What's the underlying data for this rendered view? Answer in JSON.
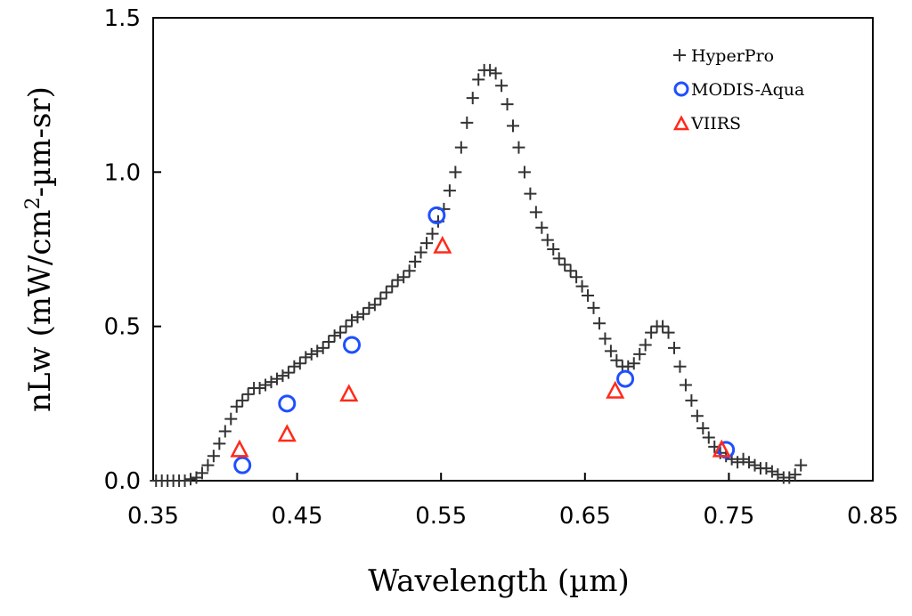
{
  "chart_data": {
    "type": "scatter",
    "title": "",
    "xlabel": "Wavelength (µm)",
    "ylabel_main": "nLw (mW/cm",
    "ylabel_sup": "2",
    "ylabel_tail": "-µm-sr)",
    "xlim": [
      0.35,
      0.85
    ],
    "ylim": [
      0.0,
      1.5
    ],
    "x_ticks": [
      0.35,
      0.45,
      0.55,
      0.65,
      0.75,
      0.85
    ],
    "x_tick_labels": [
      "0.35",
      "0.45",
      "0.55",
      "0.65",
      "0.75",
      "0.85"
    ],
    "y_ticks": [
      0.0,
      0.5,
      1.0,
      1.5
    ],
    "y_tick_labels": [
      "0.0",
      "0.5",
      "1.0",
      "1.5"
    ],
    "grid": false,
    "legend_position": "top-right",
    "series": [
      {
        "name": "HyperPro",
        "marker": "plus",
        "color": "#333333",
        "x": [
          0.352,
          0.356,
          0.36,
          0.364,
          0.368,
          0.372,
          0.376,
          0.38,
          0.384,
          0.388,
          0.392,
          0.396,
          0.4,
          0.404,
          0.408,
          0.412,
          0.416,
          0.42,
          0.424,
          0.428,
          0.432,
          0.436,
          0.44,
          0.444,
          0.448,
          0.452,
          0.456,
          0.46,
          0.464,
          0.468,
          0.472,
          0.476,
          0.48,
          0.484,
          0.488,
          0.492,
          0.496,
          0.5,
          0.504,
          0.508,
          0.512,
          0.516,
          0.52,
          0.524,
          0.528,
          0.532,
          0.536,
          0.54,
          0.544,
          0.548,
          0.552,
          0.556,
          0.56,
          0.564,
          0.568,
          0.572,
          0.576,
          0.58,
          0.584,
          0.588,
          0.592,
          0.596,
          0.6,
          0.604,
          0.608,
          0.612,
          0.616,
          0.62,
          0.624,
          0.628,
          0.632,
          0.636,
          0.64,
          0.644,
          0.648,
          0.652,
          0.656,
          0.66,
          0.664,
          0.668,
          0.672,
          0.676,
          0.68,
          0.684,
          0.688,
          0.692,
          0.696,
          0.7,
          0.704,
          0.708,
          0.712,
          0.716,
          0.72,
          0.724,
          0.728,
          0.732,
          0.736,
          0.74,
          0.744,
          0.748,
          0.752,
          0.756,
          0.76,
          0.764,
          0.768,
          0.772,
          0.776,
          0.78,
          0.784,
          0.788,
          0.792,
          0.796,
          0.8
        ],
        "y": [
          0.0,
          0.0,
          0.0,
          0.0,
          0.0,
          0.0,
          0.005,
          0.01,
          0.025,
          0.05,
          0.08,
          0.12,
          0.16,
          0.2,
          0.24,
          0.26,
          0.28,
          0.3,
          0.3,
          0.31,
          0.32,
          0.33,
          0.34,
          0.35,
          0.37,
          0.38,
          0.4,
          0.41,
          0.42,
          0.43,
          0.45,
          0.47,
          0.48,
          0.5,
          0.52,
          0.53,
          0.54,
          0.56,
          0.57,
          0.59,
          0.61,
          0.63,
          0.65,
          0.66,
          0.68,
          0.71,
          0.74,
          0.77,
          0.8,
          0.84,
          0.88,
          0.94,
          1.0,
          1.08,
          1.16,
          1.24,
          1.3,
          1.33,
          1.33,
          1.32,
          1.28,
          1.22,
          1.15,
          1.08,
          1.0,
          0.93,
          0.87,
          0.82,
          0.78,
          0.75,
          0.72,
          0.7,
          0.68,
          0.66,
          0.63,
          0.6,
          0.56,
          0.51,
          0.46,
          0.42,
          0.39,
          0.37,
          0.37,
          0.38,
          0.41,
          0.44,
          0.48,
          0.5,
          0.5,
          0.48,
          0.43,
          0.37,
          0.31,
          0.26,
          0.21,
          0.17,
          0.14,
          0.11,
          0.09,
          0.08,
          0.07,
          0.06,
          0.07,
          0.06,
          0.05,
          0.04,
          0.04,
          0.03,
          0.02,
          0.01,
          0.01,
          0.02,
          0.05
        ]
      },
      {
        "name": "MODIS-Aqua",
        "marker": "circle",
        "color": "#1f4fff",
        "x": [
          0.412,
          0.443,
          0.488,
          0.547,
          0.678,
          0.748
        ],
        "y": [
          0.05,
          0.25,
          0.44,
          0.86,
          0.33,
          0.1
        ]
      },
      {
        "name": "VIIRS",
        "marker": "triangle",
        "color": "#ff2a1a",
        "x": [
          0.41,
          0.443,
          0.486,
          0.551,
          0.671,
          0.745
        ],
        "y": [
          0.1,
          0.15,
          0.28,
          0.76,
          0.29,
          0.1
        ]
      }
    ]
  }
}
